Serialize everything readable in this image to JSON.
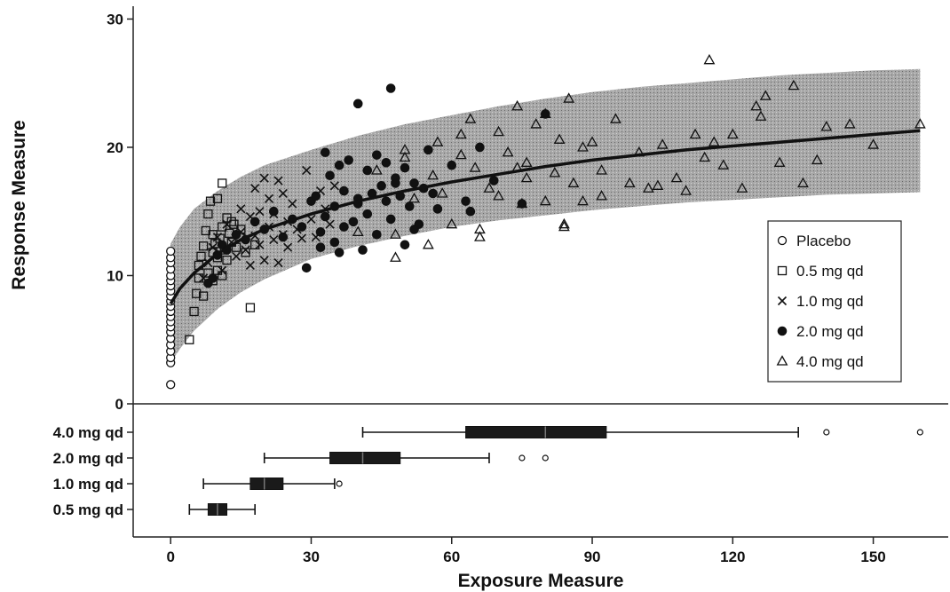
{
  "chart_data": [
    {
      "type": "scatter",
      "ylabel": "Response Measure",
      "xlabel": "",
      "xlim": [
        -8,
        166
      ],
      "ylim": [
        0,
        31
      ],
      "yticks": [
        0,
        10,
        20,
        30
      ],
      "grid": false,
      "legend_position": "right",
      "legend": [
        "Placebo",
        "0.5 mg qd",
        "1.0 mg qd",
        "2.0 mg qd",
        "4.0 mg qd"
      ],
      "model_fit": {
        "x": [
          0,
          2,
          5,
          10,
          15,
          20,
          30,
          40,
          50,
          60,
          70,
          80,
          90,
          100,
          110,
          120,
          130,
          140,
          150,
          160
        ],
        "median": [
          7.8,
          9.0,
          10.2,
          11.7,
          12.8,
          13.6,
          14.8,
          15.8,
          16.6,
          17.3,
          17.9,
          18.5,
          19.0,
          19.4,
          19.8,
          20.1,
          20.4,
          20.7,
          21.0,
          21.3
        ],
        "lower": [
          3.2,
          4.3,
          5.7,
          7.4,
          8.7,
          9.7,
          11.3,
          12.3,
          13.1,
          13.8,
          14.3,
          14.7,
          15.1,
          15.4,
          15.7,
          15.9,
          16.1,
          16.3,
          16.4,
          16.5
        ],
        "upper": [
          12.5,
          13.8,
          15.2,
          16.6,
          17.7,
          18.6,
          19.8,
          20.9,
          21.8,
          22.5,
          23.2,
          23.8,
          24.3,
          24.7,
          25.0,
          25.3,
          25.6,
          25.8,
          26.0,
          26.1
        ]
      },
      "series": [
        {
          "name": "Placebo",
          "marker": "circle-open",
          "x": [
            0,
            0,
            0,
            0,
            0,
            0,
            0,
            0,
            0,
            0,
            0,
            0,
            0,
            0,
            0,
            0,
            0,
            0,
            0,
            0,
            0,
            0
          ],
          "y": [
            1.5,
            3.2,
            3.6,
            4.1,
            4.6,
            5.1,
            5.6,
            6.0,
            6.4,
            6.8,
            7.2,
            7.6,
            8.0,
            8.4,
            8.8,
            9.2,
            9.6,
            10.0,
            10.5,
            11.0,
            11.4,
            11.9
          ]
        },
        {
          "name": "0.5 mg qd",
          "marker": "square-open",
          "x": [
            4,
            5,
            5.5,
            6,
            6.5,
            7,
            7.5,
            8,
            8,
            8.5,
            9,
            9,
            9.5,
            10,
            10,
            10.5,
            11,
            11,
            11.5,
            12,
            12,
            12.5,
            13,
            13.5,
            14,
            15,
            16,
            17,
            18,
            6,
            7,
            9,
            10,
            11,
            13,
            15
          ],
          "y": [
            5.0,
            7.2,
            8.6,
            9.8,
            11.5,
            12.3,
            13.5,
            10.2,
            14.8,
            15.8,
            11.8,
            13.2,
            12.5,
            16.0,
            10.4,
            12.9,
            17.2,
            13.8,
            12.0,
            14.5,
            11.2,
            13.3,
            12.6,
            14.0,
            12.2,
            13.0,
            11.8,
            7.5,
            12.4,
            10.8,
            8.4,
            9.6,
            11.4,
            10.0,
            14.2,
            13.6
          ]
        },
        {
          "name": "1.0 mg qd",
          "marker": "cross",
          "x": [
            7,
            8,
            9,
            10,
            11,
            12,
            13,
            14,
            15,
            15,
            16,
            17,
            17,
            18,
            18,
            19,
            19,
            20,
            20,
            21,
            21,
            22,
            22,
            23,
            23,
            24,
            24,
            25,
            25,
            26,
            27,
            28,
            29,
            30,
            31,
            32,
            33,
            34,
            35
          ],
          "y": [
            9.8,
            11.0,
            12.2,
            13.0,
            10.4,
            14.0,
            12.6,
            11.5,
            13.4,
            15.2,
            12.0,
            14.6,
            10.8,
            13.1,
            16.8,
            12.4,
            15.0,
            17.6,
            11.2,
            13.8,
            16.0,
            12.8,
            14.8,
            17.4,
            11.0,
            13.2,
            16.4,
            12.2,
            14.2,
            15.6,
            13.6,
            12.9,
            18.2,
            14.4,
            13.0,
            16.6,
            15.2,
            14.0,
            17.0
          ]
        },
        {
          "name": "2.0 mg qd",
          "marker": "circle-filled",
          "x": [
            8,
            9,
            10,
            11,
            12,
            14,
            16,
            18,
            20,
            22,
            24,
            26,
            28,
            29,
            30,
            31,
            32,
            33,
            33,
            34,
            35,
            35,
            36,
            37,
            37,
            38,
            39,
            40,
            40,
            41,
            42,
            42,
            43,
            44,
            44,
            45,
            46,
            46,
            47,
            47,
            48,
            49,
            50,
            50,
            51,
            52,
            53,
            54,
            55,
            57,
            60,
            63,
            66,
            69,
            75,
            80,
            32,
            36,
            40,
            48,
            52,
            56,
            64
          ],
          "y": [
            9.4,
            9.8,
            11.6,
            12.4,
            12.0,
            13.2,
            12.8,
            14.2,
            13.6,
            15.0,
            13.0,
            14.4,
            13.8,
            10.6,
            15.8,
            16.2,
            12.2,
            19.6,
            14.6,
            17.8,
            12.6,
            15.4,
            18.6,
            13.8,
            16.6,
            19.0,
            14.2,
            23.4,
            15.6,
            12.0,
            18.2,
            14.8,
            16.4,
            19.4,
            13.2,
            17.0,
            15.8,
            18.8,
            24.6,
            14.4,
            17.6,
            16.2,
            12.4,
            18.4,
            15.4,
            17.2,
            14.0,
            16.8,
            19.8,
            15.2,
            18.6,
            15.8,
            20.0,
            17.4,
            15.6,
            22.6,
            13.4,
            11.8,
            16.0,
            17.2,
            13.6,
            16.4,
            15.0
          ]
        },
        {
          "name": "4.0 mg qd",
          "marker": "triangle-open",
          "x": [
            40,
            44,
            48,
            50,
            52,
            55,
            57,
            60,
            62,
            64,
            65,
            66,
            68,
            70,
            72,
            74,
            75,
            76,
            78,
            80,
            80,
            82,
            83,
            84,
            85,
            86,
            88,
            90,
            92,
            95,
            98,
            100,
            102,
            105,
            108,
            110,
            112,
            115,
            116,
            118,
            120,
            122,
            125,
            127,
            130,
            133,
            135,
            138,
            140,
            145,
            150,
            160,
            48,
            56,
            62,
            70,
            76,
            84,
            92,
            104,
            114,
            126,
            50,
            58,
            66,
            74,
            88
          ],
          "y": [
            13.4,
            18.2,
            11.4,
            19.8,
            16.0,
            12.4,
            20.4,
            14.0,
            21.0,
            22.2,
            18.4,
            13.0,
            16.8,
            21.2,
            19.6,
            23.2,
            15.6,
            18.8,
            21.8,
            15.8,
            22.6,
            18.0,
            20.6,
            14.0,
            23.8,
            17.2,
            15.8,
            20.4,
            16.2,
            22.2,
            17.2,
            19.6,
            16.8,
            20.2,
            17.6,
            16.6,
            21.0,
            26.8,
            20.4,
            18.6,
            21.0,
            16.8,
            23.2,
            24.0,
            18.8,
            24.8,
            17.2,
            19.0,
            21.6,
            21.8,
            20.2,
            21.8,
            13.2,
            17.8,
            19.4,
            16.2,
            17.6,
            13.8,
            18.2,
            17.0,
            19.2,
            22.4,
            19.2,
            16.4,
            13.6,
            18.4,
            20.0
          ]
        }
      ]
    },
    {
      "type": "boxplot",
      "xlabel": "Exposure Measure",
      "xlim": [
        -8,
        166
      ],
      "xticks": [
        0,
        30,
        60,
        90,
        120,
        150
      ],
      "orientation": "horizontal",
      "categories": [
        "4.0 mg qd",
        "2.0 mg qd",
        "1.0 mg qd",
        "0.5 mg qd"
      ],
      "boxes": [
        {
          "name": "4.0 mg qd",
          "whisker_low": 41,
          "q1": 63,
          "median": 80,
          "q3": 93,
          "whisker_high": 134,
          "outliers": [
            140,
            160
          ]
        },
        {
          "name": "2.0 mg qd",
          "whisker_low": 20,
          "q1": 34,
          "median": 41,
          "q3": 49,
          "whisker_high": 68,
          "outliers": [
            75,
            80
          ]
        },
        {
          "name": "1.0 mg qd",
          "whisker_low": 7,
          "q1": 17,
          "median": 20,
          "q3": 24,
          "whisker_high": 35,
          "outliers": [
            36
          ]
        },
        {
          "name": "0.5 mg qd",
          "whisker_low": 4,
          "q1": 8,
          "median": 10,
          "q3": 12,
          "whisker_high": 18,
          "outliers": []
        }
      ]
    }
  ]
}
